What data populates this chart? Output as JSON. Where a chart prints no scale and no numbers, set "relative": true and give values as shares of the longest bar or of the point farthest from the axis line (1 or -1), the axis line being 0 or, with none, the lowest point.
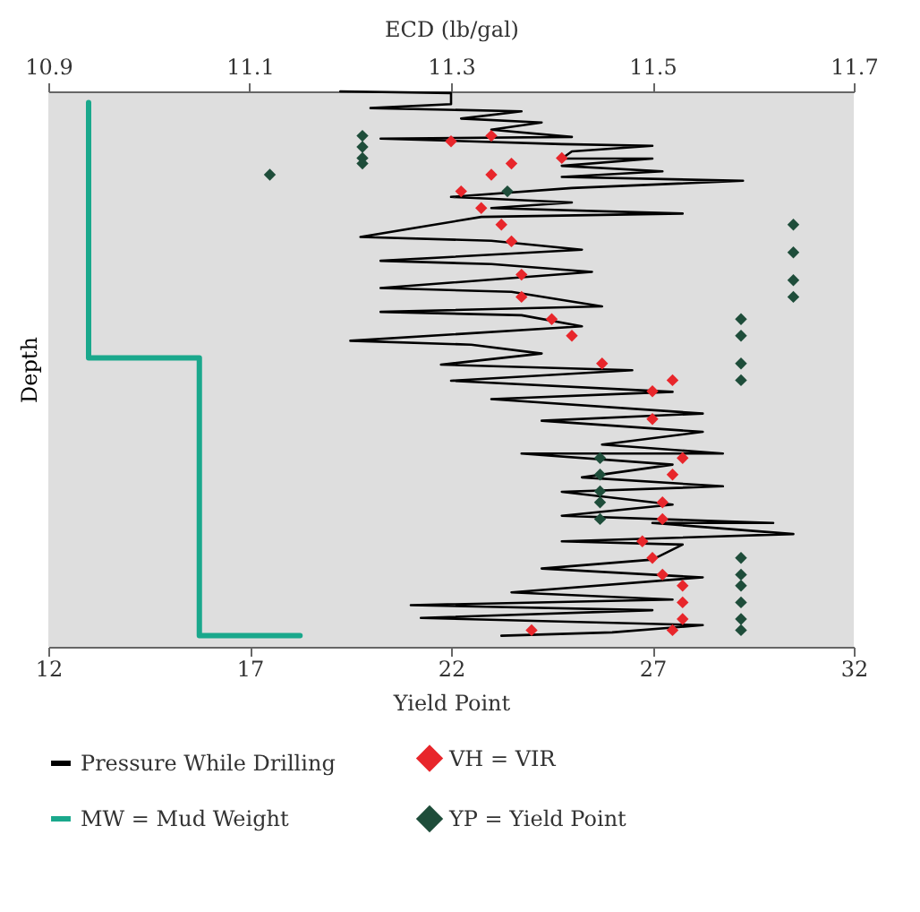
{
  "chart_data": {
    "type": "line",
    "xlabel": "Yield Point",
    "x2label": "ECD (lb/gal)",
    "ylabel": "Depth",
    "relative": true,
    "xlim": [
      12,
      32
    ],
    "xticks": [
      12,
      17,
      22,
      27,
      32
    ],
    "x2lim": [
      10.9,
      11.7
    ],
    "x2ticks": [
      10.9,
      11.1,
      11.3,
      11.5,
      11.7
    ],
    "legend": "bottom",
    "marker": "none",
    "line_style": "solid",
    "series": [
      {
        "name": "Pressure While Drilling",
        "type": "line",
        "axis": "x2",
        "color": "#000000",
        "x": [
          11.19,
          11.3,
          11.3,
          11.22,
          11.37,
          11.31,
          11.39,
          11.34,
          11.42,
          11.23,
          11.41,
          11.5,
          11.42,
          11.41,
          11.5,
          11.41,
          11.51,
          11.41,
          11.59,
          11.42,
          11.3,
          11.42,
          11.34,
          11.53,
          11.33,
          11.21,
          11.34,
          11.43,
          11.23,
          11.34,
          11.44,
          11.23,
          11.36,
          11.45,
          11.23,
          11.37,
          11.43,
          11.2,
          11.32,
          11.39,
          11.29,
          11.48,
          11.3,
          11.52,
          11.34,
          11.55,
          11.39,
          11.55,
          11.45,
          11.57,
          11.37,
          11.52,
          11.43,
          11.57,
          11.41,
          11.52,
          11.41,
          11.62,
          11.5,
          11.64,
          11.41,
          11.53,
          11.5,
          11.39,
          11.55,
          11.36,
          11.52,
          11.26,
          11.5,
          11.27,
          11.55,
          11.46,
          11.35
        ],
        "values": [
          1.0,
          0.997,
          0.977,
          0.97,
          0.964,
          0.951,
          0.944,
          0.931,
          0.918,
          0.915,
          0.905,
          0.902,
          0.892,
          0.879,
          0.879,
          0.866,
          0.856,
          0.846,
          0.839,
          0.826,
          0.81,
          0.8,
          0.79,
          0.78,
          0.774,
          0.738,
          0.731,
          0.715,
          0.695,
          0.689,
          0.675,
          0.646,
          0.639,
          0.613,
          0.603,
          0.597,
          0.577,
          0.551,
          0.544,
          0.528,
          0.508,
          0.498,
          0.479,
          0.459,
          0.446,
          0.42,
          0.407,
          0.387,
          0.364,
          0.348,
          0.348,
          0.328,
          0.305,
          0.289,
          0.279,
          0.256,
          0.236,
          0.223,
          0.223,
          0.203,
          0.19,
          0.184,
          0.157,
          0.141,
          0.125,
          0.098,
          0.085,
          0.075,
          0.066,
          0.052,
          0.039,
          0.026,
          0.02
        ]
      },
      {
        "name": "VH = VIR",
        "type": "scatter",
        "marker": "diamond",
        "axis": "x2",
        "color": "#e8262b",
        "x": [
          11.34,
          11.3,
          11.41,
          11.36,
          11.34,
          11.31,
          11.33,
          11.35,
          11.36,
          11.37,
          11.37,
          11.4,
          11.42,
          11.45,
          11.52,
          11.5,
          11.5,
          11.53,
          11.52,
          11.51,
          11.51,
          11.49,
          11.5,
          11.51,
          11.53,
          11.53,
          11.53,
          11.38,
          11.52
        ],
        "values": [
          0.92,
          0.91,
          0.88,
          0.87,
          0.85,
          0.82,
          0.79,
          0.76,
          0.73,
          0.67,
          0.63,
          0.59,
          0.56,
          0.51,
          0.48,
          0.46,
          0.41,
          0.34,
          0.31,
          0.26,
          0.23,
          0.19,
          0.16,
          0.13,
          0.11,
          0.08,
          0.05,
          0.03,
          0.03
        ]
      },
      {
        "name": "MW = Mud Weight",
        "type": "line",
        "axis": "x2",
        "color": "#1aa88c",
        "x": [
          10.94,
          10.94,
          11.05,
          11.05,
          11.15
        ],
        "values": [
          0.98,
          0.52,
          0.52,
          0.02,
          0.02
        ]
      },
      {
        "name": "YP = Yield Point",
        "type": "scatter",
        "marker": "diamond",
        "color": "#1e4d3a",
        "x": [
          19.8,
          19.8,
          19.8,
          19.8,
          17.5,
          23.4,
          30.5,
          30.5,
          30.5,
          30.5,
          29.2,
          29.2,
          29.2,
          29.2,
          25.7,
          25.7,
          25.7,
          25.7,
          25.7,
          29.2,
          29.2,
          29.2,
          29.2,
          29.2,
          29.2
        ],
        "values": [
          0.92,
          0.9,
          0.88,
          0.87,
          0.85,
          0.82,
          0.76,
          0.71,
          0.66,
          0.63,
          0.59,
          0.56,
          0.51,
          0.48,
          0.34,
          0.31,
          0.28,
          0.26,
          0.23,
          0.16,
          0.13,
          0.11,
          0.08,
          0.05,
          0.03
        ]
      }
    ]
  }
}
